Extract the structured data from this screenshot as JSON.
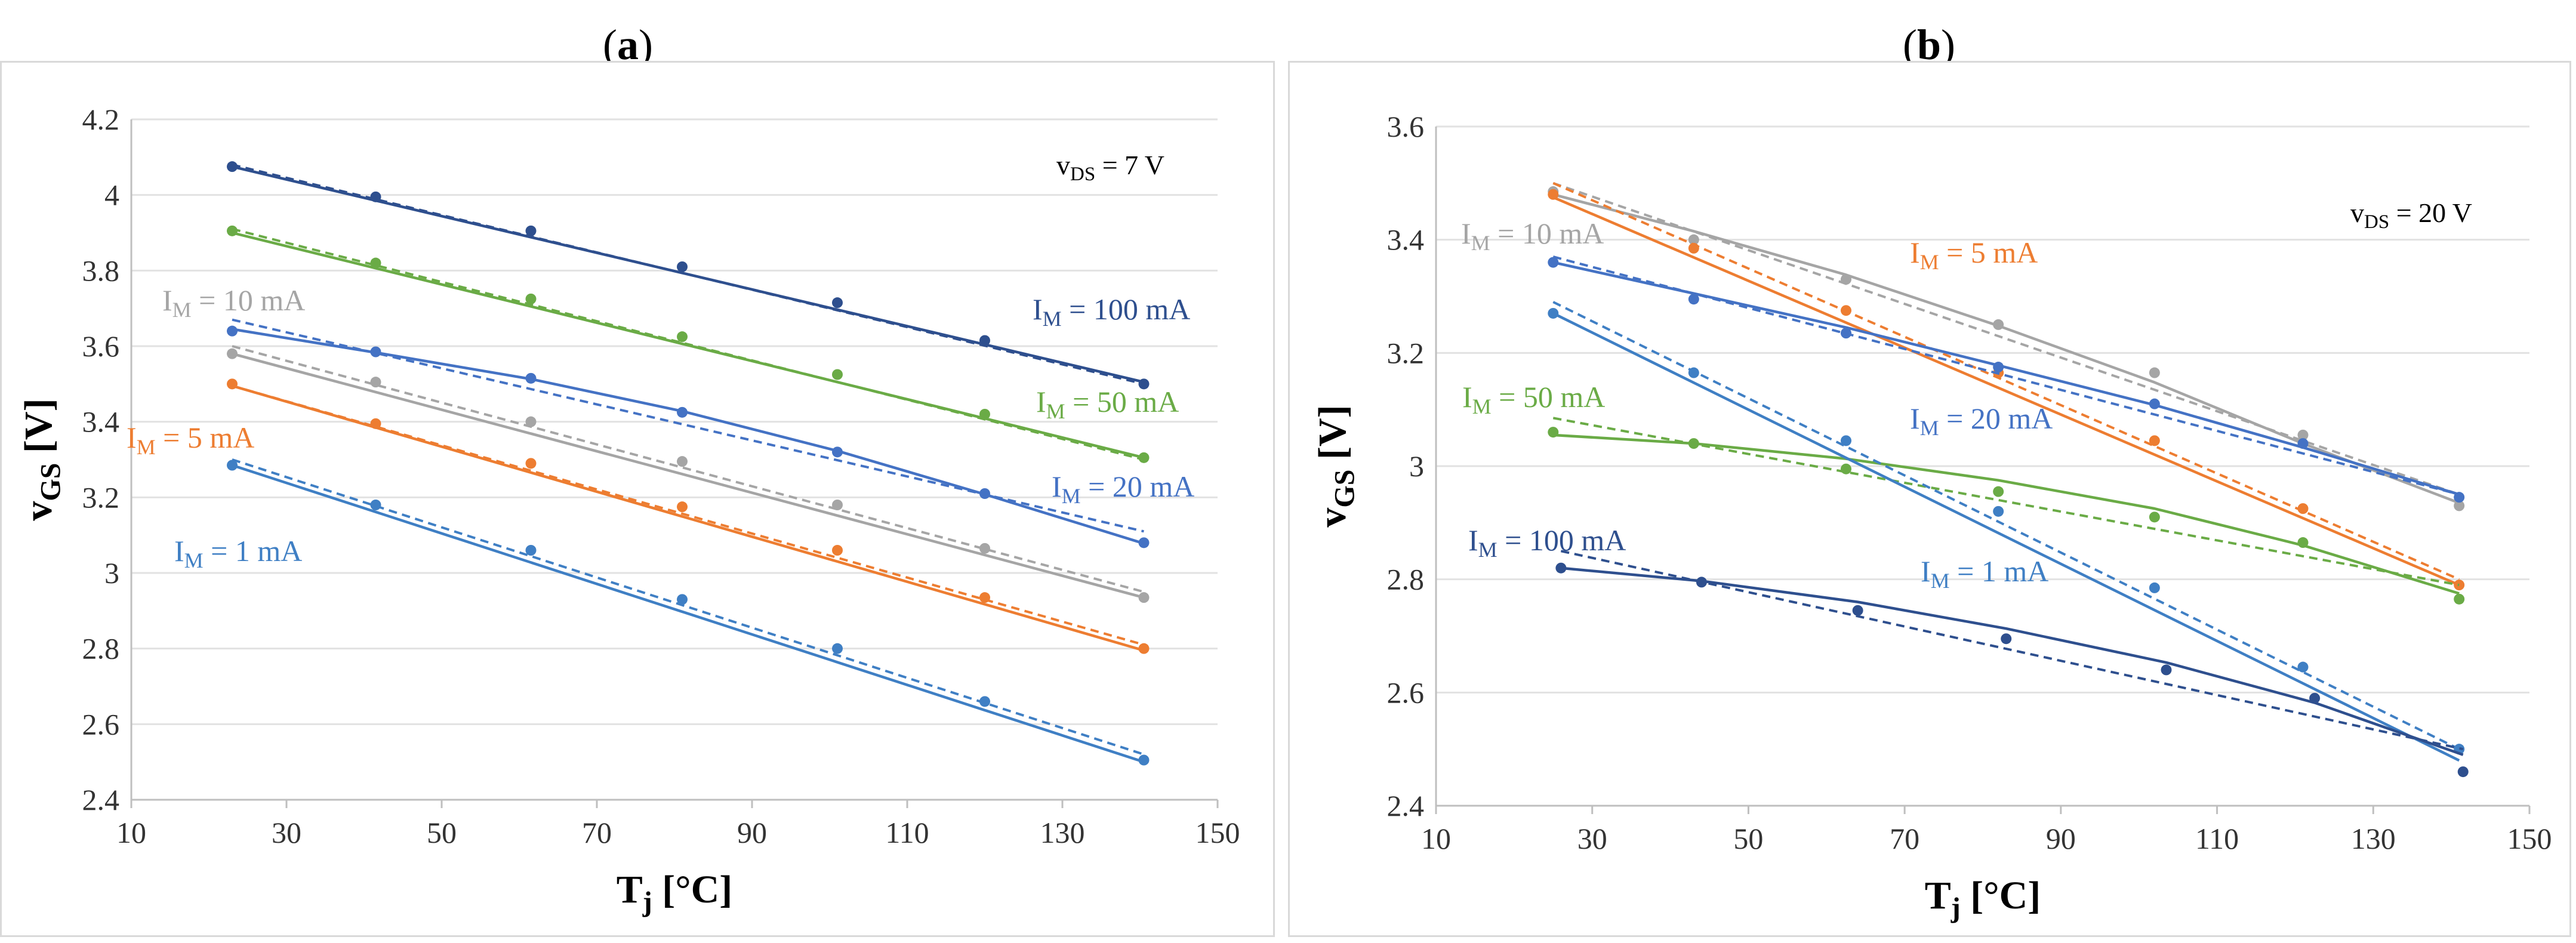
{
  "chart_data": [
    {
      "panel": "a",
      "panel_label": "a",
      "type": "line",
      "xlabel": "T",
      "xlabel_sub": "j",
      "xunit": "[°C]",
      "ylabel": "v",
      "ylabel_sub": "GS",
      "yunit": "[V]",
      "xlim": [
        10,
        150
      ],
      "ylim": [
        2.4,
        4.2
      ],
      "xticks": [
        10,
        30,
        50,
        70,
        90,
        110,
        130,
        150
      ],
      "yticks": [
        2.4,
        2.6,
        2.8,
        3,
        3.2,
        3.4,
        3.6,
        3.8,
        4,
        4.2
      ],
      "grid": "horizontal",
      "condition": {
        "prefix": "v",
        "sub": "DS",
        "value": " = 7 V"
      },
      "series": [
        {
          "name": "I_M = 100 mA",
          "label_main": "I",
          "label_sub": "M",
          "label_value": " = 100 mA",
          "color": "#2e4f8e",
          "points": [
            [
              23,
              4.075
            ],
            [
              41.5,
              3.995
            ],
            [
              61.5,
              3.905
            ],
            [
              81,
              3.81
            ],
            [
              101,
              3.715
            ],
            [
              120,
              3.615
            ],
            [
              140.5,
              3.5
            ]
          ],
          "fit": [
            [
              23,
              4.075
            ],
            [
              140.5,
              3.505
            ]
          ],
          "fit_dashed": [
            [
              23,
              4.08
            ],
            [
              140.5,
              3.5
            ]
          ]
        },
        {
          "name": "I_M = 50 mA",
          "label_main": "I",
          "label_sub": "M",
          "label_value": " = 50 mA",
          "color": "#6aab46",
          "points": [
            [
              23,
              3.905
            ],
            [
              41.5,
              3.82
            ],
            [
              61.5,
              3.725
            ],
            [
              81,
              3.625
            ],
            [
              101,
              3.525
            ],
            [
              120,
              3.42
            ],
            [
              140.5,
              3.305
            ]
          ],
          "fit": [
            [
              23,
              3.9
            ],
            [
              140.5,
              3.305
            ]
          ],
          "fit_dashed": [
            [
              23,
              3.91
            ],
            [
              140.5,
              3.3
            ]
          ]
        },
        {
          "name": "I_M = 20 mA",
          "label_main": "I",
          "label_sub": "M",
          "label_value": " = 20 mA",
          "color": "#4472c4",
          "points": [
            [
              23,
              3.64
            ],
            [
              41.5,
              3.585
            ],
            [
              61.5,
              3.515
            ],
            [
              81,
              3.425
            ],
            [
              101,
              3.32
            ],
            [
              120,
              3.21
            ],
            [
              140.5,
              3.08
            ]
          ],
          "fit": [
            [
              23,
              3.645
            ],
            [
              41.5,
              3.583
            ],
            [
              61.5,
              3.513
            ],
            [
              81,
              3.428
            ],
            [
              101,
              3.323
            ],
            [
              120,
              3.208
            ],
            [
              140.5,
              3.078
            ]
          ],
          "fit_dashed": [
            [
              23,
              3.67
            ],
            [
              140.5,
              3.11
            ]
          ]
        },
        {
          "name": "I_M = 10 mA",
          "label_main": "I",
          "label_sub": "M",
          "label_value": " = 10 mA",
          "color": "#a5a5a5",
          "points": [
            [
              23,
              3.58
            ],
            [
              41.5,
              3.505
            ],
            [
              61.5,
              3.4
            ],
            [
              81,
              3.295
            ],
            [
              101,
              3.18
            ],
            [
              120,
              3.065
            ],
            [
              140.5,
              2.935
            ]
          ],
          "fit": [
            [
              23,
              3.58
            ],
            [
              140.5,
              2.935
            ]
          ],
          "fit_dashed": [
            [
              23,
              3.6
            ],
            [
              140.5,
              2.95
            ]
          ]
        },
        {
          "name": "I_M = 5 mA",
          "label_main": "I",
          "label_sub": "M",
          "label_value": " = 5 mA",
          "color": "#ed7d31",
          "points": [
            [
              23,
              3.5
            ],
            [
              41.5,
              3.395
            ],
            [
              61.5,
              3.29
            ],
            [
              81,
              3.175
            ],
            [
              101,
              3.06
            ],
            [
              120,
              2.935
            ],
            [
              140.5,
              2.8
            ]
          ],
          "fit": [
            [
              23,
              3.495
            ],
            [
              140.5,
              2.795
            ]
          ],
          "fit_dashed": [
            [
              23,
              3.495
            ],
            [
              140.5,
              2.81
            ]
          ]
        },
        {
          "name": "I_M = 1 mA",
          "label_main": "I",
          "label_sub": "M",
          "label_value": " = 1 mA",
          "color": "#3f7fc4",
          "points": [
            [
              23,
              3.285
            ],
            [
              41.5,
              3.18
            ],
            [
              61.5,
              3.06
            ],
            [
              81,
              2.93
            ],
            [
              101,
              2.8
            ],
            [
              120,
              2.66
            ],
            [
              140.5,
              2.505
            ]
          ],
          "fit": [
            [
              23,
              3.285
            ],
            [
              140.5,
              2.5
            ]
          ],
          "fit_dashed": [
            [
              23,
              3.3
            ],
            [
              140.5,
              2.52
            ]
          ]
        }
      ]
    },
    {
      "panel": "b",
      "panel_label": "b",
      "type": "line",
      "xlabel": "T",
      "xlabel_sub": "j",
      "xunit": "[°C]",
      "ylabel": "v",
      "ylabel_sub": "GS",
      "yunit": "[V]",
      "xlim": [
        10,
        150
      ],
      "ylim": [
        2.4,
        3.6
      ],
      "xticks": [
        10,
        30,
        50,
        70,
        90,
        110,
        130,
        150
      ],
      "yticks": [
        2.4,
        2.6,
        2.8,
        3,
        3.2,
        3.4,
        3.6
      ],
      "grid": "horizontal",
      "condition": {
        "prefix": "v",
        "sub": "DS",
        "value": " = 20 V"
      },
      "series": [
        {
          "name": "I_M = 10 mA",
          "label_main": "I",
          "label_sub": "M",
          "label_value": " = 10 mA",
          "color": "#a5a5a5",
          "points": [
            [
              25,
              3.485
            ],
            [
              43,
              3.4
            ],
            [
              62.5,
              3.33
            ],
            [
              82,
              3.25
            ],
            [
              102,
              3.165
            ],
            [
              121,
              3.055
            ],
            [
              141,
              2.93
            ]
          ],
          "fit": [
            [
              25,
              3.48
            ],
            [
              43,
              3.415
            ],
            [
              62.5,
              3.338
            ],
            [
              82,
              3.248
            ],
            [
              102,
              3.148
            ],
            [
              121,
              3.04
            ],
            [
              141,
              2.935
            ]
          ],
          "fit_dashed": [
            [
              25,
              3.5
            ],
            [
              141,
              2.95
            ]
          ]
        },
        {
          "name": "I_M = 5 mA",
          "label_main": "I",
          "label_sub": "M",
          "label_value": " = 5 mA",
          "color": "#ed7d31",
          "points": [
            [
              25,
              3.48
            ],
            [
              43,
              3.385
            ],
            [
              62.5,
              3.275
            ],
            [
              82,
              3.165
            ],
            [
              102,
              3.045
            ],
            [
              121,
              2.925
            ],
            [
              141,
              2.79
            ]
          ],
          "fit": [
            [
              25,
              3.475
            ],
            [
              141,
              2.79
            ]
          ],
          "fit_dashed": [
            [
              25,
              3.5
            ],
            [
              141,
              2.8
            ]
          ]
        },
        {
          "name": "I_M = 20 mA",
          "label_main": "I",
          "label_sub": "M",
          "label_value": " = 20 mA",
          "color": "#4472c4",
          "points": [
            [
              25,
              3.36
            ],
            [
              43,
              3.295
            ],
            [
              62.5,
              3.235
            ],
            [
              82,
              3.175
            ],
            [
              102,
              3.11
            ],
            [
              121,
              3.04
            ],
            [
              141,
              2.945
            ]
          ],
          "fit": [
            [
              25,
              3.36
            ],
            [
              43,
              3.305
            ],
            [
              62.5,
              3.245
            ],
            [
              82,
              3.178
            ],
            [
              102,
              3.108
            ],
            [
              121,
              3.033
            ],
            [
              141,
              2.95
            ]
          ],
          "fit_dashed": [
            [
              25,
              3.37
            ],
            [
              141,
              2.95
            ]
          ]
        },
        {
          "name": "I_M = 50 mA",
          "label_main": "I",
          "label_sub": "M",
          "label_value": " = 50 mA",
          "color": "#6aab46",
          "points": [
            [
              25,
              3.06
            ],
            [
              43,
              3.04
            ],
            [
              62.5,
              2.995
            ],
            [
              82,
              2.955
            ],
            [
              102,
              2.91
            ],
            [
              121,
              2.865
            ],
            [
              141,
              2.765
            ]
          ],
          "fit": [
            [
              25,
              3.055
            ],
            [
              43,
              3.04
            ],
            [
              62.5,
              3.013
            ],
            [
              82,
              2.975
            ],
            [
              102,
              2.925
            ],
            [
              121,
              2.86
            ],
            [
              141,
              2.775
            ]
          ],
          "fit_dashed": [
            [
              25,
              3.085
            ],
            [
              141,
              2.79
            ]
          ]
        },
        {
          "name": "I_M = 1 mA",
          "label_main": "I",
          "label_sub": "M",
          "label_value": " = 1 mA",
          "color": "#3f7fc4",
          "points": [
            [
              25,
              3.27
            ],
            [
              43,
              3.165
            ],
            [
              62.5,
              3.045
            ],
            [
              82,
              2.92
            ],
            [
              102,
              2.785
            ],
            [
              121,
              2.645
            ],
            [
              141,
              2.5
            ]
          ],
          "fit": [
            [
              25,
              3.27
            ],
            [
              141,
              2.48
            ]
          ],
          "fit_dashed": [
            [
              25,
              3.29
            ],
            [
              141,
              2.5
            ]
          ]
        },
        {
          "name": "I_M = 100 mA",
          "label_main": "I",
          "label_sub": "M",
          "label_value": " = 100 mA",
          "color": "#2e4f8e",
          "points": [
            [
              26,
              2.82
            ],
            [
              44,
              2.795
            ],
            [
              64,
              2.745
            ],
            [
              83,
              2.695
            ],
            [
              103.5,
              2.64
            ],
            [
              122.5,
              2.59
            ],
            [
              141.5,
              2.46
            ]
          ],
          "fit": [
            [
              26,
              2.82
            ],
            [
              44,
              2.797
            ],
            [
              64,
              2.76
            ],
            [
              83,
              2.713
            ],
            [
              103.5,
              2.653
            ],
            [
              122.5,
              2.582
            ],
            [
              141.5,
              2.49
            ]
          ],
          "fit_dashed": [
            [
              26,
              2.85
            ],
            [
              141.5,
              2.5
            ]
          ]
        }
      ]
    }
  ]
}
